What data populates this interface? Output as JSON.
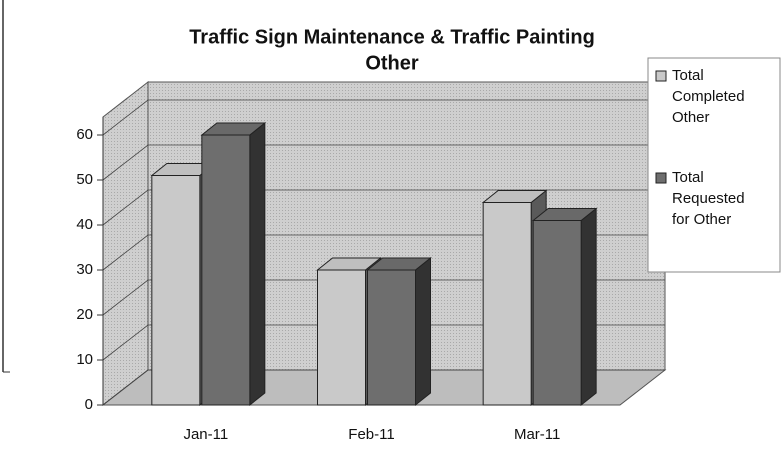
{
  "chart_data": {
    "type": "bar3d",
    "title": [
      "Traffic Sign Maintenance & Traffic Painting",
      "Other"
    ],
    "categories": [
      "Jan-11",
      "Feb-11",
      "Mar-11"
    ],
    "series": [
      {
        "name": [
          "Total",
          "Completed",
          "Other"
        ],
        "color": "#c9c9c9",
        "values": [
          51,
          30,
          45
        ]
      },
      {
        "name": [
          "Total",
          "Requested",
          "for Other"
        ],
        "color": "#6e6e6e",
        "values": [
          60,
          30,
          41
        ]
      }
    ],
    "ylim": [
      0,
      60
    ],
    "yticks": [
      0,
      10,
      20,
      30,
      40,
      50,
      60
    ],
    "grid": true,
    "legend": "right"
  }
}
